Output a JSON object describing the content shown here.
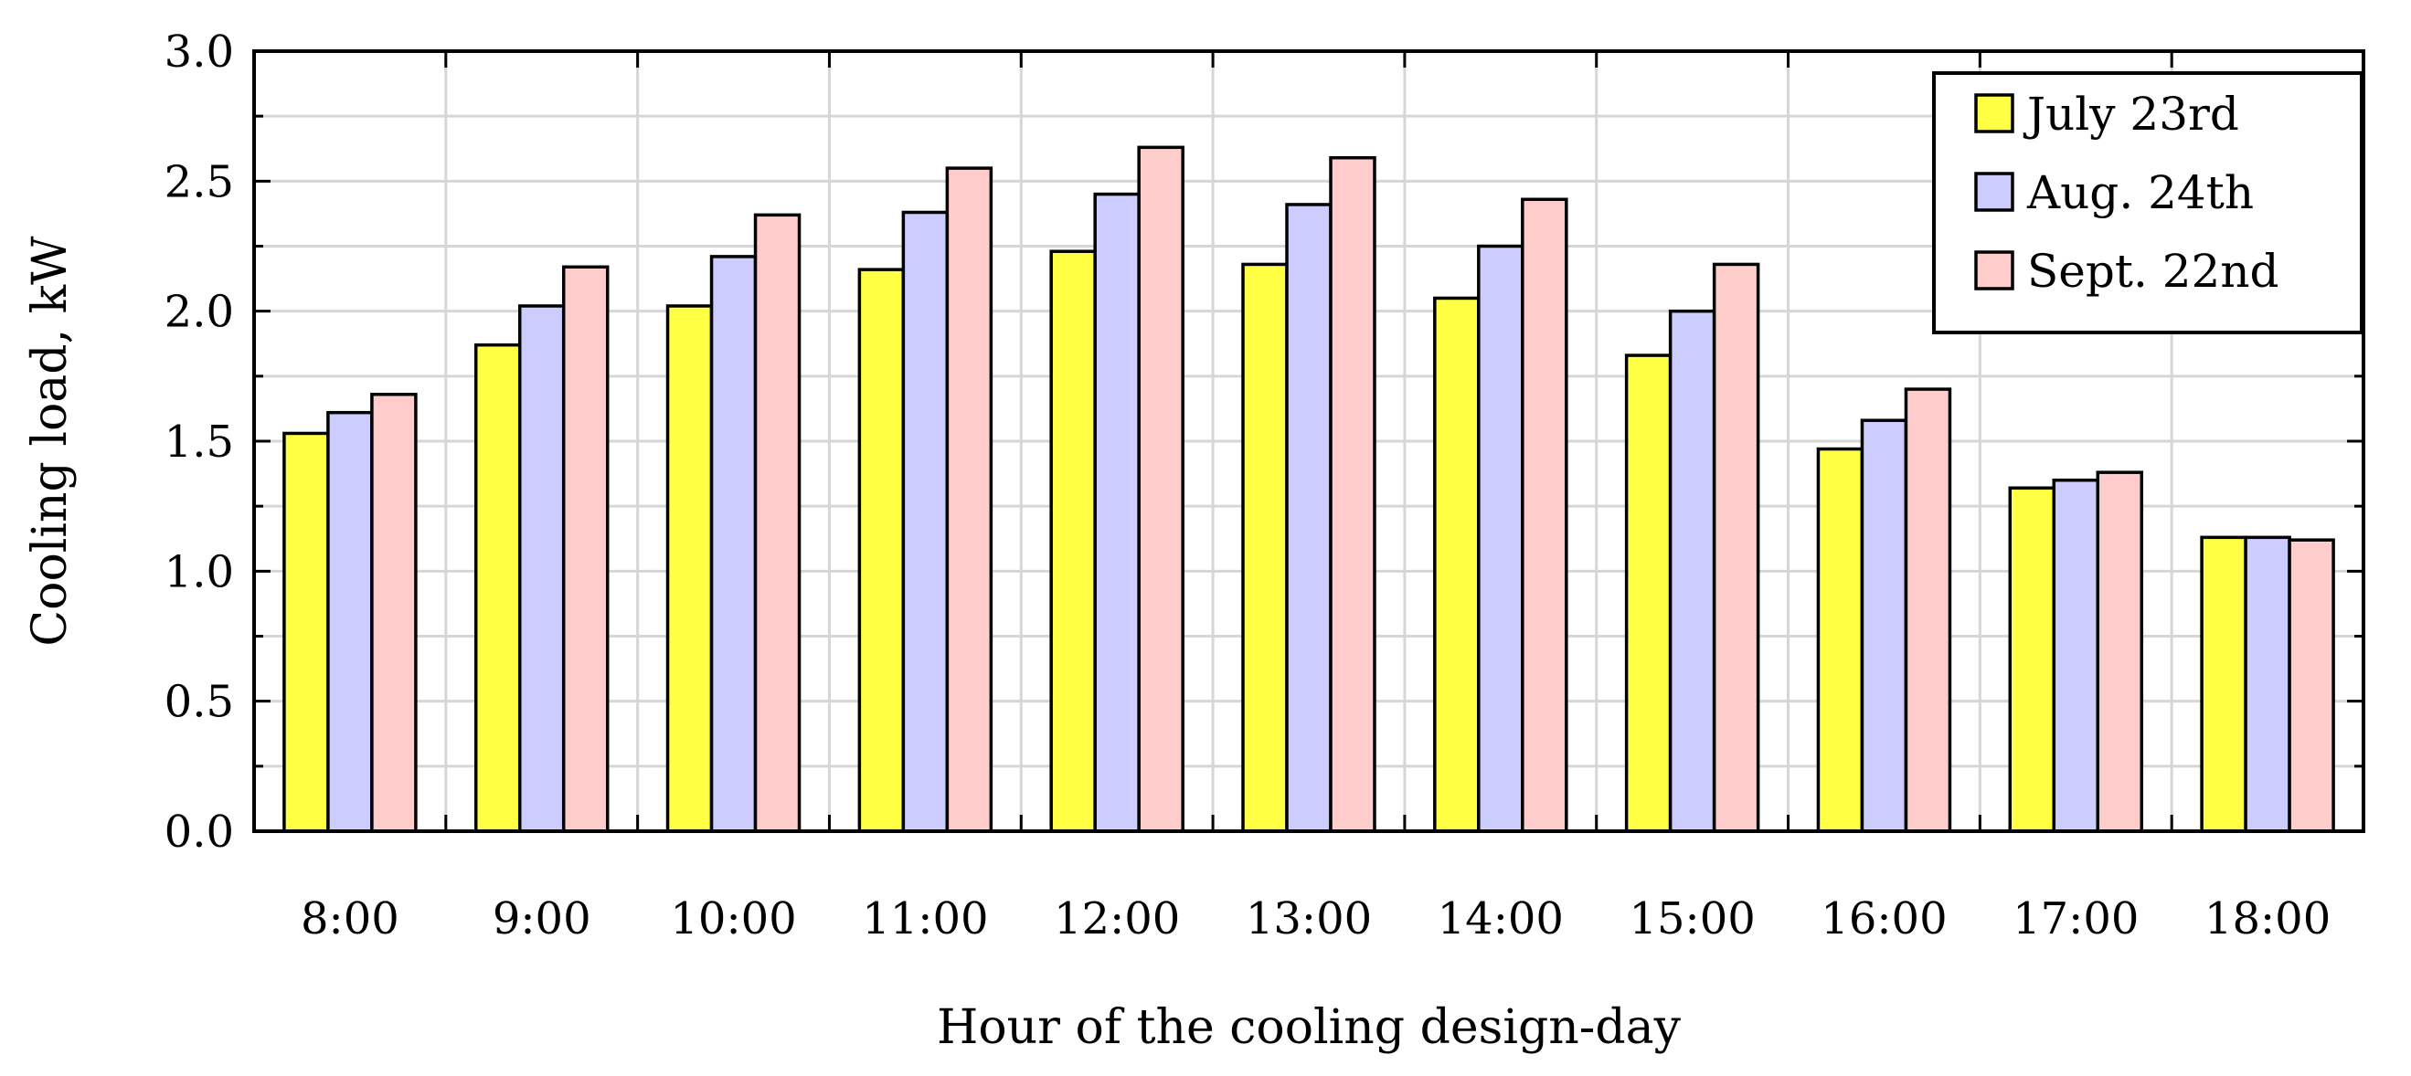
{
  "chart_data": {
    "type": "bar",
    "title": "",
    "xlabel": "Hour of the cooling design-day",
    "ylabel": "Cooling load, kW",
    "ylim": [
      0,
      3.0
    ],
    "yticks": [
      "0.0",
      "0.5",
      "1.0",
      "1.5",
      "2.0",
      "2.5",
      "3.0"
    ],
    "grid": true,
    "legend_position": "top-right",
    "categories": [
      "8:00",
      "9:00",
      "10:00",
      "11:00",
      "12:00",
      "13:00",
      "14:00",
      "15:00",
      "16:00",
      "17:00",
      "18:00"
    ],
    "series": [
      {
        "name": "July 23rd",
        "color": "#ffff44",
        "values": [
          1.53,
          1.87,
          2.02,
          2.16,
          2.23,
          2.18,
          2.05,
          1.83,
          1.47,
          1.32,
          1.13
        ]
      },
      {
        "name": "Aug. 24th",
        "color": "#ccccff",
        "values": [
          1.61,
          2.02,
          2.21,
          2.38,
          2.45,
          2.41,
          2.25,
          2.0,
          1.58,
          1.35,
          1.13
        ]
      },
      {
        "name": "Sept. 22nd",
        "color": "#ffcccc",
        "values": [
          1.68,
          2.17,
          2.37,
          2.55,
          2.63,
          2.59,
          2.43,
          2.18,
          1.7,
          1.38,
          1.12
        ]
      }
    ]
  }
}
